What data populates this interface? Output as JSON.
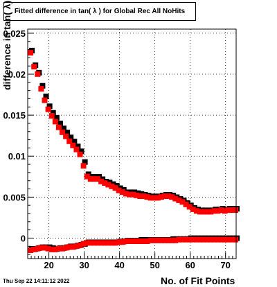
{
  "chart_data": {
    "type": "scatter",
    "title": "Fitted difference in tan( λ ) for Global Rec All NoHits",
    "xlabel": "No. of Fit Points",
    "ylabel": "difference in tan( λ)",
    "xlim": [
      14,
      73
    ],
    "ylim": [
      -0.0025,
      0.0255
    ],
    "x_ticks": [
      20,
      30,
      40,
      50,
      60,
      70
    ],
    "y_ticks": [
      0,
      0.005,
      0.01,
      0.015,
      0.02,
      0.025
    ],
    "y_tick_labels": [
      "0",
      "0.005",
      "0.01",
      "0.015",
      "0.02",
      "0.025"
    ],
    "grid": true,
    "series": [
      {
        "color": "#000000",
        "mean_x": [
          15,
          16,
          17,
          18,
          19,
          20,
          21,
          22,
          23,
          24,
          25,
          26,
          27,
          28,
          29,
          30,
          31,
          32,
          33,
          34,
          35,
          36,
          37,
          38,
          39,
          40,
          41,
          42,
          43,
          44,
          45,
          46,
          47,
          48,
          49,
          50,
          51,
          52,
          53,
          54,
          55,
          56,
          57,
          58,
          59,
          60,
          61,
          62,
          63,
          64,
          65,
          66,
          67,
          68,
          69,
          70,
          71,
          72,
          73
        ],
        "mean_y": [
          0.0228,
          0.021,
          0.0201,
          0.0185,
          0.0172,
          0.016,
          0.0152,
          0.0146,
          0.0139,
          0.0133,
          0.0128,
          0.0122,
          0.0117,
          0.0111,
          0.0105,
          0.0092,
          0.0077,
          0.0074,
          0.0074,
          0.0074,
          0.0071,
          0.0068,
          0.0067,
          0.0065,
          0.0063,
          0.006,
          0.0058,
          0.0055,
          0.0055,
          0.0055,
          0.0054,
          0.0053,
          0.0052,
          0.0051,
          0.005,
          0.005,
          0.005,
          0.0051,
          0.0052,
          0.0052,
          0.0051,
          0.0049,
          0.0047,
          0.0045,
          0.0042,
          0.0039,
          0.0036,
          0.0034,
          0.0033,
          0.0033,
          0.0033,
          0.0033,
          0.0034,
          0.0034,
          0.0035,
          0.0034,
          0.0035,
          0.0035,
          0.0035
        ],
        "sigma_x": [
          15,
          16,
          17,
          18,
          19,
          20,
          21,
          22,
          23,
          24,
          25,
          26,
          27,
          28,
          29,
          30,
          31,
          32,
          33,
          34,
          35,
          36,
          37,
          38,
          39,
          40,
          41,
          42,
          43,
          44,
          45,
          46,
          47,
          48,
          49,
          50,
          51,
          52,
          53,
          54,
          55,
          56,
          57,
          58,
          59,
          60,
          61,
          62,
          63,
          64,
          65,
          66,
          67,
          68,
          69,
          70,
          71,
          72,
          73
        ],
        "sigma_y": [
          -0.0014,
          -0.0014,
          -0.0013,
          -0.0012,
          -0.0012,
          -0.0012,
          -0.0013,
          -0.0014,
          -0.0013,
          -0.0013,
          -0.0012,
          -0.0011,
          -0.0011,
          -0.001,
          -0.0009,
          -0.0008,
          -0.0006,
          -0.0006,
          -0.0006,
          -0.0006,
          -0.0006,
          -0.0006,
          -0.0006,
          -0.0006,
          -0.0006,
          -0.0005,
          -0.0005,
          -0.0004,
          -0.0004,
          -0.0004,
          -0.0004,
          -0.0003,
          -0.0003,
          -0.0003,
          -0.0003,
          -0.0003,
          -0.0003,
          -0.0003,
          -0.0003,
          -0.0003,
          -0.0002,
          -0.0002,
          -0.0002,
          -0.0002,
          -0.0002,
          -0.0001,
          -0.0001,
          -0.0001,
          -0.0001,
          -0.0001,
          -0.0001,
          -0.0001,
          -0.0001,
          -0.0001,
          -0.0001,
          -0.0001,
          -0.0001,
          -0.0001,
          -0.0001
        ]
      },
      {
        "color": "#ff0000",
        "mean_x": [
          15,
          16,
          17,
          18,
          19,
          20,
          21,
          22,
          23,
          24,
          25,
          26,
          27,
          28,
          29,
          30,
          31,
          32,
          33,
          34,
          35,
          36,
          37,
          38,
          39,
          40,
          41,
          42,
          43,
          44,
          45,
          46,
          47,
          48,
          49,
          50,
          51,
          52,
          53,
          54,
          55,
          56,
          57,
          58,
          59,
          60,
          61,
          62,
          63,
          64,
          65,
          66,
          67,
          68,
          69,
          70,
          71,
          72,
          73
        ],
        "mean_y": [
          0.0227,
          0.021,
          0.0201,
          0.0183,
          0.0169,
          0.0158,
          0.015,
          0.0143,
          0.0136,
          0.013,
          0.0125,
          0.0119,
          0.0114,
          0.0109,
          0.0103,
          0.0089,
          0.0076,
          0.0073,
          0.0073,
          0.0073,
          0.007,
          0.0068,
          0.0066,
          0.0064,
          0.0062,
          0.0059,
          0.0057,
          0.0055,
          0.0054,
          0.0054,
          0.0053,
          0.0052,
          0.0052,
          0.0051,
          0.005,
          0.005,
          0.005,
          0.0051,
          0.0052,
          0.0052,
          0.0051,
          0.0049,
          0.0047,
          0.0045,
          0.0042,
          0.0039,
          0.0036,
          0.0034,
          0.0033,
          0.0033,
          0.0033,
          0.0033,
          0.0034,
          0.0034,
          0.0035,
          0.0034,
          0.0035,
          0.0035,
          0.0035
        ],
        "sigma_x": [
          15,
          16,
          17,
          18,
          19,
          20,
          21,
          22,
          23,
          24,
          25,
          26,
          27,
          28,
          29,
          30,
          31,
          32,
          33,
          34,
          35,
          36,
          37,
          38,
          39,
          40,
          41,
          42,
          43,
          44,
          45,
          46,
          47,
          48,
          49,
          50,
          51,
          52,
          53,
          54,
          55,
          56,
          57,
          58,
          59,
          60,
          61,
          62,
          63,
          64,
          65,
          66,
          67,
          68,
          69,
          70,
          71,
          72,
          73
        ],
        "sigma_y": [
          -0.0014,
          -0.0013,
          -0.0012,
          -0.0011,
          -0.0011,
          -0.0012,
          -0.0013,
          -0.0013,
          -0.0012,
          -0.0012,
          -0.0011,
          -0.001,
          -0.001,
          -0.0009,
          -0.0008,
          -0.0006,
          -0.0005,
          -0.0005,
          -0.0005,
          -0.0005,
          -0.0005,
          -0.0005,
          -0.0005,
          -0.0005,
          -0.0005,
          -0.0004,
          -0.0004,
          -0.0003,
          -0.0003,
          -0.0003,
          -0.0003,
          -0.0003,
          -0.0003,
          -0.0003,
          -0.0002,
          -0.0002,
          -0.0002,
          -0.0002,
          -0.0002,
          -0.0002,
          -0.0002,
          -0.0002,
          -0.0001,
          -0.0001,
          -0.0001,
          -0.0001,
          -0.0001,
          -0.0001,
          -0.0001,
          -0.0001,
          -0.0001,
          -0.0001,
          -0.0001,
          -0.0001,
          -0.0001,
          -0.0001,
          -0.0001,
          -0.0001,
          -0.0001
        ]
      }
    ]
  },
  "footer": {
    "date": "Thu Sep 22 14:11:12 2022"
  }
}
